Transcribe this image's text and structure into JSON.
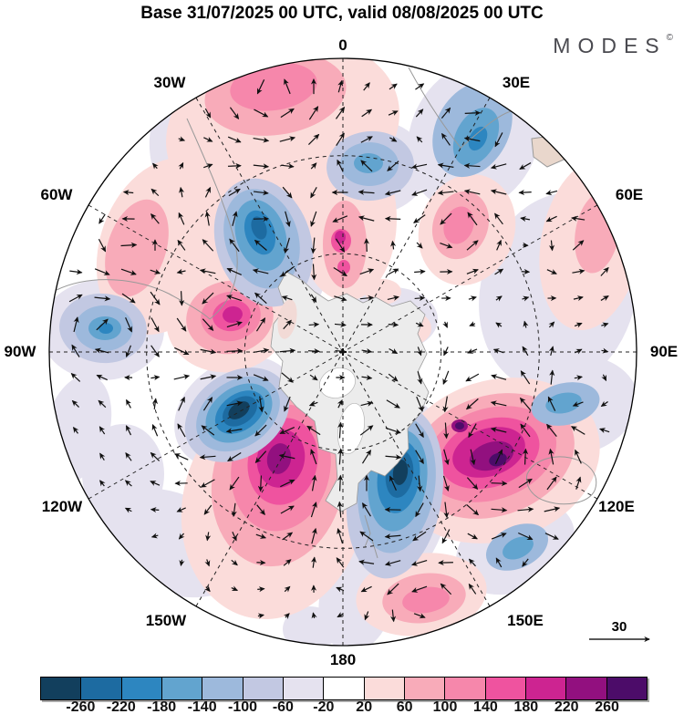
{
  "header": {
    "title": "Base 31/07/2025 00 UTC, valid 08/08/2025 00 UTC"
  },
  "brand": {
    "name": "MODES",
    "mark": "©"
  },
  "map": {
    "longitude_labels": [
      "0",
      "30E",
      "60E",
      "90E",
      "120E",
      "150E",
      "180",
      "150W",
      "120W",
      "90W",
      "60W",
      "30W"
    ]
  },
  "reference_vector": {
    "label": "30"
  },
  "colorbar": {
    "tick_labels": [
      "-260",
      "-220",
      "-180",
      "-140",
      "-100",
      "-60",
      "-20",
      "20",
      "60",
      "100",
      "140",
      "180",
      "220",
      "260"
    ],
    "colors": [
      "#123f5d",
      "#1d6ba1",
      "#2d86c0",
      "#62a4cf",
      "#9db9dc",
      "#c2c8e2",
      "#e5e2ef",
      "#ffffff",
      "#fbdcda",
      "#f8abb9",
      "#f687ab",
      "#ef539f",
      "#cd2491",
      "#92107f",
      "#4c0c69"
    ]
  },
  "chart_data": {
    "type": "heatmap",
    "title": "Base 31/07/2025 00 UTC, valid 08/08/2025 00 UTC",
    "projection": "south polar stereographic, pole at center, 0 longitude at top, equator at rim",
    "field": "filled anomaly contours with wind vector arrows and dashed graticule every 30 degrees",
    "levels": [
      -260,
      -220,
      -180,
      -140,
      -100,
      -60,
      -20,
      20,
      60,
      100,
      140,
      180,
      220,
      260
    ],
    "level_step": 40,
    "reference_vector_value": 30,
    "anomaly_centers": [
      {
        "lon": -15,
        "lat": -8,
        "value": 140
      },
      {
        "lon": 0,
        "lat": -56,
        "value": 180
      },
      {
        "lon": -63,
        "lat": -16,
        "value": 100
      },
      {
        "lon": -72,
        "lat": -54,
        "value": 220
      },
      {
        "lon": -152,
        "lat": -51,
        "value": 260
      },
      {
        "lon": 125,
        "lat": -35,
        "value": 280
      },
      {
        "lon": 42,
        "lat": -37,
        "value": 140
      },
      {
        "lon": 65,
        "lat": -11,
        "value": 100
      },
      {
        "lon": 162,
        "lat": -11,
        "value": 120
      },
      {
        "lon": -35,
        "lat": -49,
        "value": -200
      },
      {
        "lon": 8,
        "lat": -32,
        "value": -120
      },
      {
        "lon": 31,
        "lat": -12,
        "value": -140
      },
      {
        "lon": -84,
        "lat": -17,
        "value": -140
      },
      {
        "lon": -121,
        "lat": -53,
        "value": -280
      },
      {
        "lon": 157,
        "lat": -47,
        "value": -280
      },
      {
        "lon": 138,
        "lat": -11,
        "value": -120
      },
      {
        "lon": 103,
        "lat": -21,
        "value": -120
      }
    ]
  }
}
